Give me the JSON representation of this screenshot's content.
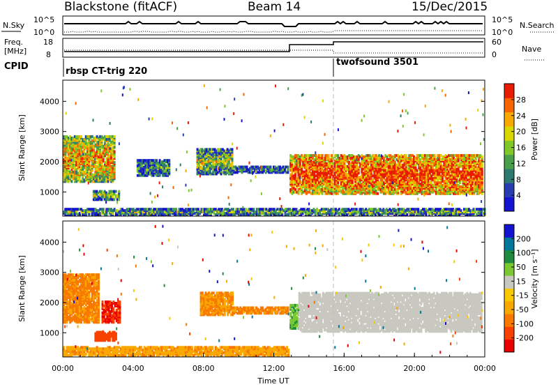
{
  "header": {
    "station": "Blackstone (fitACF)",
    "beam": "Beam 14",
    "date": "15/Dec/2015"
  },
  "nsky_panel": {
    "left_label": "N.Sky",
    "left_ticks": [
      "10^5",
      "10^0"
    ],
    "right_label": "N.Search",
    "right_ticks": [
      "10^5",
      "10^0"
    ]
  },
  "freq_panel": {
    "left_label_1": "Freq.",
    "left_label_2": "[MHz]",
    "left_ticks": [
      "18",
      "8"
    ],
    "right_label": "Nave",
    "right_ticks": [
      "60",
      "0"
    ]
  },
  "cpid": {
    "label": "CPID",
    "programs": [
      {
        "name": "rbsp CT-trig 220",
        "start_hour": 0
      },
      {
        "name": "twofsound 3501",
        "start_hour": 15.4
      }
    ]
  },
  "chart_data": [
    {
      "type": "heatmap",
      "title": "",
      "ylabel": "Slant Range [km]",
      "xlabel": "",
      "ylim": [
        200,
        4700
      ],
      "xlim": [
        0,
        24
      ],
      "yticks": [
        "1000",
        "2000",
        "3000",
        "4000"
      ],
      "colorbar": {
        "label": "Power [dB]",
        "range": [
          0,
          30
        ],
        "tick_labels": [
          "4",
          "8",
          "12",
          "16",
          "20",
          "24",
          "28"
        ],
        "colors": [
          "#1414d0",
          "#283cb4",
          "#2c7a70",
          "#4aa04a",
          "#80c828",
          "#d8d800",
          "#f8a800",
          "#f86400",
          "#e81c00"
        ]
      },
      "series": [
        {
          "hour_start": 0.0,
          "hour_end": 2.9,
          "range_min": 1300,
          "range_max": 2800,
          "level": 0.6
        },
        {
          "hour_start": 1.7,
          "hour_end": 3.2,
          "range_min": 700,
          "range_max": 1000,
          "level": 0.35
        },
        {
          "hour_start": 4.2,
          "hour_end": 6.0,
          "range_min": 1500,
          "range_max": 2000,
          "level": 0.25
        },
        {
          "hour_start": 7.6,
          "hour_end": 9.6,
          "range_min": 1550,
          "range_max": 2400,
          "level": 0.4
        },
        {
          "hour_start": 9.6,
          "hour_end": 12.8,
          "range_min": 1600,
          "range_max": 1800,
          "level": 0.2
        },
        {
          "hour_start": 12.9,
          "hour_end": 23.8,
          "range_min": 900,
          "range_max": 2200,
          "level": 0.8
        },
        {
          "hour_start": 0.0,
          "hour_end": 24.0,
          "range_min": 200,
          "range_max": 400,
          "level": 0.3
        }
      ]
    },
    {
      "type": "heatmap",
      "title": "",
      "ylabel": "Slant Range [km]",
      "xlabel": "Time UT",
      "ylim": [
        200,
        4700
      ],
      "xlim": [
        0,
        24
      ],
      "yticks": [
        "1000",
        "2000",
        "3000",
        "4000"
      ],
      "xticks": [
        "00:00",
        "04:00",
        "08:00",
        "12:00",
        "16:00",
        "20:00",
        "00:00"
      ],
      "colorbar": {
        "label": "Velocity [m s⁻¹]",
        "range": [
          -250,
          250
        ],
        "tick_labels": [
          "-200",
          "-100",
          "-50",
          "-15",
          "15",
          "50",
          "100",
          "200"
        ],
        "colors": [
          "#e80000",
          "#f84000",
          "#f87800",
          "#f8a800",
          "#f8c800",
          "#c8c8c0",
          "#7ac832",
          "#1e8c3c",
          "#00789c",
          "#1414d0"
        ]
      },
      "series": [
        {
          "hour_start": 0.0,
          "hour_end": 2.0,
          "range_min": 1300,
          "range_max": 2900,
          "velocity": -60
        },
        {
          "hour_start": 2.2,
          "hour_end": 3.2,
          "range_min": 1300,
          "range_max": 2000,
          "velocity": -200
        },
        {
          "hour_start": 1.8,
          "hour_end": 3.0,
          "range_min": 700,
          "range_max": 1000,
          "velocity": -120
        },
        {
          "hour_start": 7.8,
          "hour_end": 9.6,
          "range_min": 1550,
          "range_max": 2300,
          "velocity": -50
        },
        {
          "hour_start": 9.6,
          "hour_end": 12.8,
          "range_min": 1600,
          "range_max": 1800,
          "velocity": -60
        },
        {
          "hour_start": 12.9,
          "hour_end": 13.4,
          "range_min": 1100,
          "range_max": 1900,
          "velocity": 40
        },
        {
          "hour_start": 13.4,
          "hour_end": 23.8,
          "range_min": 1000,
          "range_max": 2300,
          "velocity": 0
        },
        {
          "hour_start": 0.0,
          "hour_end": 12.8,
          "range_min": 200,
          "range_max": 500,
          "velocity": -40
        }
      ]
    }
  ]
}
